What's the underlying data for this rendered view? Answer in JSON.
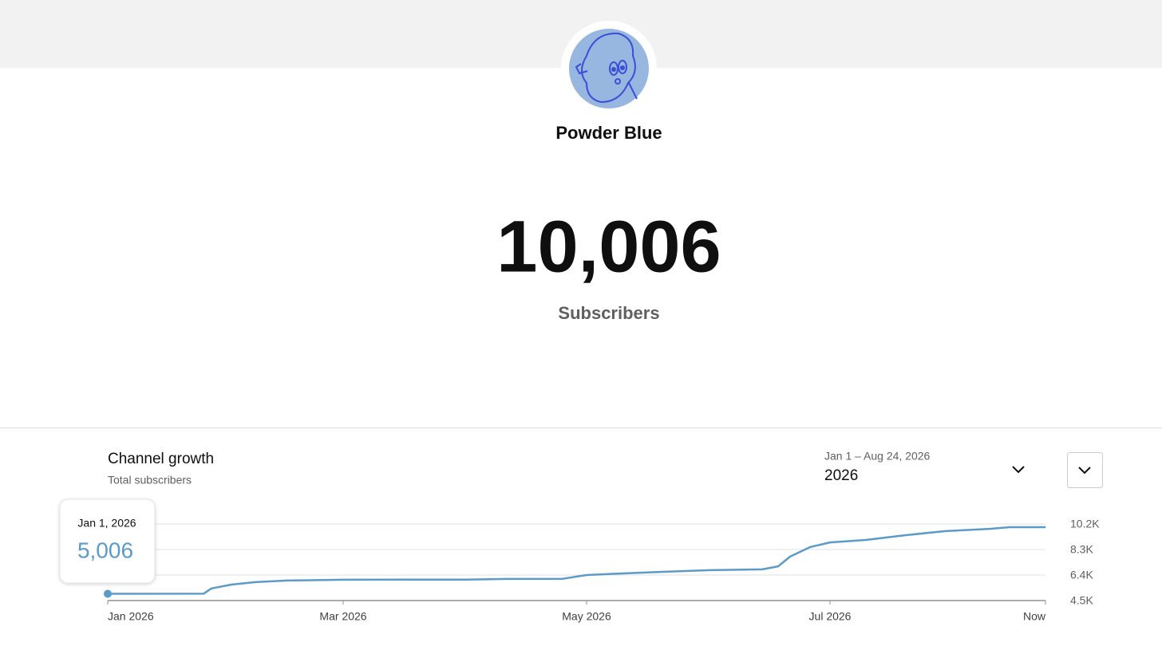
{
  "header": {
    "channel_name": "Powder Blue"
  },
  "stats": {
    "subscriber_count": "10,006",
    "label": "Subscribers"
  },
  "growth": {
    "title": "Channel growth",
    "subtitle": "Total subscribers",
    "date_range": "Jan 1 – Aug 24, 2026",
    "period": "2026",
    "tooltip": {
      "date": "Jan 1, 2026",
      "value": "5,006"
    }
  },
  "chart_data": {
    "type": "line",
    "color": "#5b9bc8",
    "grid": true,
    "x": [
      "2026-01-01",
      "2026-01-25",
      "2026-01-27",
      "2026-02-01",
      "2026-02-07",
      "2026-02-15",
      "2026-03-01",
      "2026-04-01",
      "2026-04-11",
      "2026-04-25",
      "2026-05-01",
      "2026-05-10",
      "2026-05-20",
      "2026-06-01",
      "2026-06-14",
      "2026-06-18",
      "2026-06-21",
      "2026-06-26",
      "2026-07-01",
      "2026-07-10",
      "2026-07-20",
      "2026-07-30",
      "2026-08-10",
      "2026-08-15",
      "2026-08-24"
    ],
    "values": [
      5006,
      5010,
      5400,
      5690,
      5870,
      5990,
      6050,
      6060,
      6110,
      6120,
      6400,
      6520,
      6640,
      6760,
      6820,
      7050,
      7770,
      8480,
      8830,
      9010,
      9370,
      9670,
      9840,
      9960,
      9960
    ],
    "xlim": [
      "2026-01-01",
      "2026-08-24"
    ],
    "xticks": [
      {
        "value": "2026-01-01",
        "label": "Jan 2026"
      },
      {
        "value": "2026-03-01",
        "label": "Mar 2026"
      },
      {
        "value": "2026-05-01",
        "label": "May 2026"
      },
      {
        "value": "2026-07-01",
        "label": "Jul 2026"
      },
      {
        "value": "2026-08-24",
        "label": "Now"
      }
    ],
    "ylim": [
      4500,
      10200
    ],
    "yticks": [
      {
        "value": 4500,
        "label": "4.5K"
      },
      {
        "value": 6400,
        "label": "6.4K"
      },
      {
        "value": 8300,
        "label": "8.3K"
      },
      {
        "value": 10200,
        "label": "10.2K"
      }
    ]
  }
}
